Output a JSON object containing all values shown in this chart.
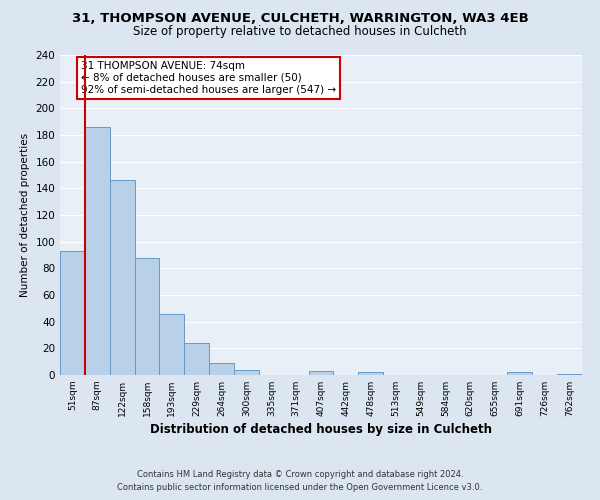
{
  "title_line1": "31, THOMPSON AVENUE, CULCHETH, WARRINGTON, WA3 4EB",
  "title_line2": "Size of property relative to detached houses in Culcheth",
  "xlabel": "Distribution of detached houses by size in Culcheth",
  "ylabel": "Number of detached properties",
  "bar_labels": [
    "51sqm",
    "87sqm",
    "122sqm",
    "158sqm",
    "193sqm",
    "229sqm",
    "264sqm",
    "300sqm",
    "335sqm",
    "371sqm",
    "407sqm",
    "442sqm",
    "478sqm",
    "513sqm",
    "549sqm",
    "584sqm",
    "620sqm",
    "655sqm",
    "691sqm",
    "726sqm",
    "762sqm"
  ],
  "bar_values": [
    93,
    186,
    146,
    88,
    46,
    24,
    9,
    4,
    0,
    0,
    3,
    0,
    2,
    0,
    0,
    0,
    0,
    0,
    2,
    0,
    1
  ],
  "bar_color": "#b8d0e8",
  "bar_edge_color": "#6699cc",
  "vline_color": "#cc0000",
  "ylim": [
    0,
    240
  ],
  "yticks": [
    0,
    20,
    40,
    60,
    80,
    100,
    120,
    140,
    160,
    180,
    200,
    220,
    240
  ],
  "annotation_title": "31 THOMPSON AVENUE: 74sqm",
  "annotation_line1": "← 8% of detached houses are smaller (50)",
  "annotation_line2": "92% of semi-detached houses are larger (547) →",
  "annotation_box_color": "#ffffff",
  "annotation_box_edge_color": "#cc0000",
  "footer_line1": "Contains HM Land Registry data © Crown copyright and database right 2024.",
  "footer_line2": "Contains public sector information licensed under the Open Government Licence v3.0.",
  "bg_color": "#dce6f0",
  "plot_bg_color": "#e8eff7",
  "grid_color": "#ffffff",
  "title_fontsize": 9,
  "subtitle_fontsize": 8.5
}
